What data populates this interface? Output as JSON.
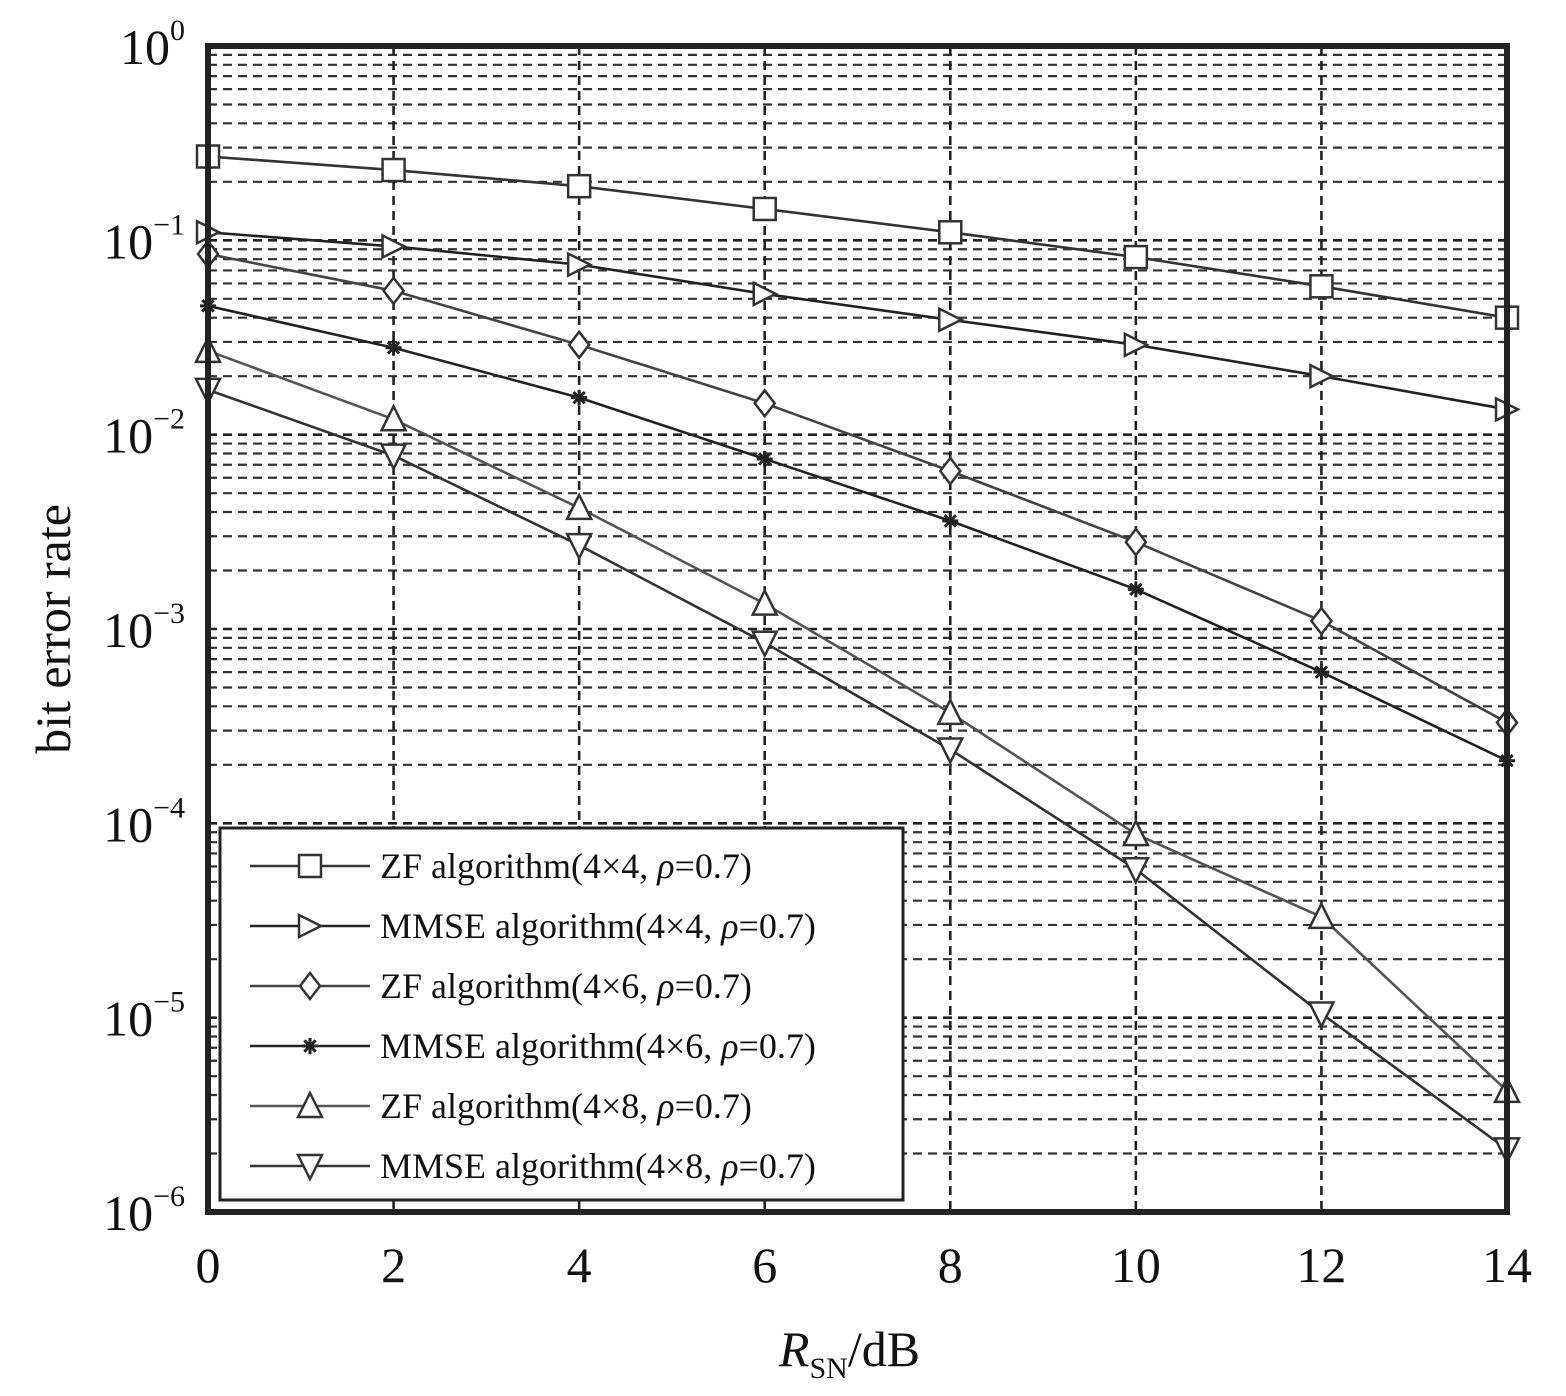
{
  "chart_data": {
    "type": "line",
    "xlabel": {
      "main": "R",
      "sub": "SN",
      "unit": "/dB"
    },
    "ylabel": "bit error rate",
    "x_ticks": [
      "0",
      "2",
      "4",
      "6",
      "8",
      "10",
      "12",
      "14"
    ],
    "y_ticks": [
      {
        "base": "10",
        "exp": "0"
      },
      {
        "base": "10",
        "exp": "−1"
      },
      {
        "base": "10",
        "exp": "−2"
      },
      {
        "base": "10",
        "exp": "−3"
      },
      {
        "base": "10",
        "exp": "−4"
      },
      {
        "base": "10",
        "exp": "−5"
      },
      {
        "base": "10",
        "exp": "−6"
      }
    ],
    "xlim": [
      0,
      14
    ],
    "ylim": [
      1e-06,
      1
    ],
    "yscale": "log",
    "grid": true,
    "legend_position": "bottom-left",
    "x": [
      0,
      2,
      4,
      6,
      8,
      10,
      12,
      14
    ],
    "series": [
      {
        "label": "ZF algorithm(4×4, ",
        "marker": "square",
        "color": "#333333",
        "values": [
          0.27,
          0.23,
          0.19,
          0.145,
          0.11,
          0.082,
          0.058,
          0.04
        ]
      },
      {
        "label": "MMSE algorithm(4×4, ",
        "marker": "triangle-right",
        "color": "#222222",
        "values": [
          0.11,
          0.093,
          0.075,
          0.053,
          0.039,
          0.029,
          0.02,
          0.0135
        ]
      },
      {
        "label": "ZF algorithm(4×6, ",
        "marker": "diamond",
        "color": "#444444",
        "values": [
          0.085,
          0.055,
          0.029,
          0.0145,
          0.0065,
          0.0028,
          0.0011,
          0.00033
        ]
      },
      {
        "label": "MMSE algorithm(4×6, ",
        "marker": "star",
        "color": "#222222",
        "values": [
          0.046,
          0.028,
          0.0155,
          0.0075,
          0.0036,
          0.0016,
          0.0006,
          0.00021
        ]
      },
      {
        "label": "ZF algorithm(4×8, ",
        "marker": "triangle-up",
        "color": "#555555",
        "values": [
          0.027,
          0.012,
          0.0042,
          0.00135,
          0.00037,
          8.8e-05,
          3.3e-05,
          4.2e-06
        ]
      },
      {
        "label": "MMSE algorithm(4×8, ",
        "marker": "triangle-down",
        "color": "#333333",
        "values": [
          0.017,
          0.0078,
          0.0027,
          0.00085,
          0.00024,
          5.8e-05,
          1.05e-05,
          2.1e-06
        ]
      }
    ],
    "legend_suffix": {
      "rho": "ρ",
      "rest": "=0.7)"
    }
  }
}
